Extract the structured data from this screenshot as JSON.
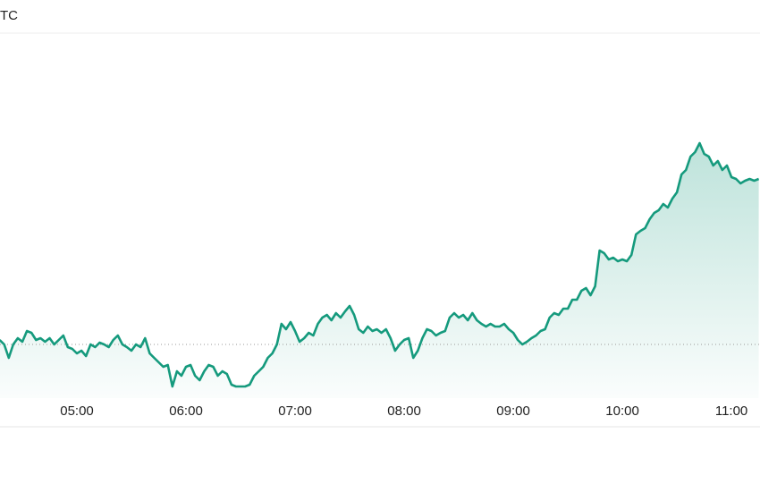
{
  "chart_data": {
    "type": "area-line",
    "title": "TC",
    "x": [
      257.5,
      260,
      262.5,
      265,
      267.5,
      270,
      272.5,
      275,
      277.5,
      280,
      282.5,
      285,
      287.5,
      290,
      292.5,
      295,
      297.5,
      300,
      302.5,
      305,
      307.5,
      310,
      312.5,
      315,
      317.5,
      320,
      322.5,
      325,
      327.5,
      330,
      332.5,
      335,
      337.5,
      340,
      342.5,
      345,
      347.5,
      350,
      352.5,
      355,
      357.5,
      360,
      362.5,
      365,
      367.5,
      370,
      372.5,
      375,
      377.5,
      380,
      382.5,
      385,
      387.5,
      390,
      392.5,
      395,
      397.5,
      400,
      402.5,
      405,
      407.5,
      410,
      412.5,
      415,
      417.5,
      420,
      422.5,
      425,
      427.5,
      430,
      432.5,
      435,
      437.5,
      440,
      442.5,
      445,
      447.5,
      450,
      452.5,
      455,
      457.5,
      460,
      462.5,
      465,
      467.5,
      470,
      472.5,
      475,
      477.5,
      480,
      482.5,
      485,
      487.5,
      490,
      492.5,
      495,
      497.5,
      500,
      502.5,
      505,
      507.5,
      510,
      512.5,
      515,
      517.5,
      520,
      522.5,
      525,
      527.5,
      530,
      532.5,
      535,
      537.5,
      540,
      542.5,
      545,
      547.5,
      550,
      552.5,
      555,
      557.5,
      560,
      562.5,
      565,
      567.5,
      570,
      572.5,
      575,
      577.5,
      580,
      582.5,
      585,
      587.5,
      590,
      592.5,
      595,
      597.5,
      600,
      602.5,
      605,
      607.5,
      610,
      612.5,
      615,
      617.5,
      620,
      622.5,
      625,
      627.5,
      630,
      632.5,
      635,
      637.5,
      640,
      642.5,
      645,
      647.5,
      650,
      652.5,
      655,
      657.5,
      660,
      662.5,
      665,
      667.5,
      670,
      672.5,
      675
    ],
    "values": [
      65,
      60,
      45,
      60,
      67,
      63,
      75,
      73,
      65,
      67,
      63,
      67,
      60,
      65,
      70,
      57,
      55,
      50,
      53,
      47,
      60,
      57,
      62,
      60,
      57,
      65,
      70,
      60,
      57,
      53,
      60,
      57,
      67,
      50,
      45,
      40,
      35,
      37,
      13,
      30,
      25,
      35,
      37,
      25,
      20,
      30,
      37,
      35,
      25,
      30,
      27,
      15,
      13,
      13,
      13,
      15,
      25,
      30,
      35,
      45,
      50,
      60,
      83,
      77,
      85,
      75,
      63,
      67,
      73,
      70,
      83,
      90,
      93,
      87,
      95,
      90,
      97,
      103,
      93,
      77,
      73,
      80,
      75,
      77,
      73,
      77,
      67,
      53,
      60,
      65,
      67,
      45,
      53,
      67,
      77,
      75,
      70,
      73,
      75,
      90,
      95,
      90,
      93,
      87,
      95,
      87,
      83,
      80,
      83,
      80,
      80,
      83,
      77,
      73,
      65,
      60,
      63,
      67,
      70,
      75,
      77,
      90,
      95,
      93,
      100,
      100,
      110,
      110,
      120,
      123,
      115,
      125,
      165,
      162,
      155,
      157,
      153,
      155,
      153,
      160,
      183,
      187,
      190,
      200,
      207,
      210,
      217,
      213,
      223,
      230,
      250,
      255,
      270,
      275,
      285,
      273,
      270,
      260,
      265,
      255,
      260,
      247,
      245,
      240,
      243,
      245,
      243,
      245
    ],
    "color": "#159a7d",
    "reference": 60,
    "xlim": [
      257.7,
      675.7
    ],
    "xticks": [
      {
        "value": 300,
        "label": "05:00"
      },
      {
        "value": 360,
        "label": "06:00"
      },
      {
        "value": 420,
        "label": "07:00"
      },
      {
        "value": 480,
        "label": "08:00"
      },
      {
        "value": 540,
        "label": "09:00"
      },
      {
        "value": 600,
        "label": "10:00"
      },
      {
        "value": 660,
        "label": "11:00"
      }
    ],
    "ylim": [
      0,
      408
    ]
  }
}
